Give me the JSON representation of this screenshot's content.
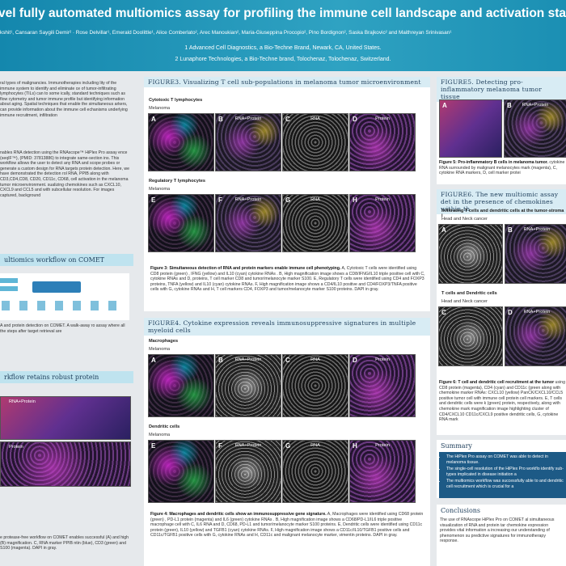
{
  "header": {
    "title": "vel fully automated multiomics assay for profiling the immune cell landscape and activation sta",
    "authors": "kshit¹, Cansaran Saygili Demir² · Rose Delvillar¹, Emerald Doolittle¹, Alice Comberlato², Arec Manoukian², Maria-Giuseppina Procopio², Pino Bordignon², Saska Brajkovic² and Maithreyan Srinivasan¹",
    "affiliations": [
      "1 Advanced Cell Diagnostics, a Bio-Techne Brand, Newark, CA, United States.",
      "2 Lunaphore Technologies, a Bio-Techne brand, Tolochenaz, Tolochenaz, Switzerland."
    ]
  },
  "left": {
    "intro": "ral types of malignancies. Immunotherapies including lity of the immune system to identify and eliminate ce of tumor-infiltrating lymphocytes (TILs) can to some ically, standard techniques such as flow cytometry and tumor immune profile but identifying information about aging. Spatial techniques that enable the simultaneous arkers, can provide information about the immune cell echanisms underlying immune recruitment, infiltration",
    "method": "nables RNA detection using the RNAscope™ HiPlex Pro assay ence (seqIF™), (PMID: 37813886) to integrate same-section ins. This workflow allows the user to detect any RNA and scope probes or generate a custom design for RNA targets protein detection. Here, we have demonstrated the detection rol RNA, PPIB along with CD3,CD4,CD8, CD20, CD11c, CD68, cell activation in the melanoma tumor microenvironment. sualizing chemokines such as CXCL10, CXCL9 and CCL5 and with subcellular resolution. For images captured, background",
    "workflow_heading": "ultiomics workflow on COMET",
    "workflow_caption": "A and protein detection on COMET. A walk-away ro assay where all the steps after target retrieval are",
    "protein_heading": "rkflow retains robust protein",
    "panel_labels": [
      "RNA+Protein",
      "Protein"
    ],
    "protein_caption": "e protease-free workflow on COMET enables successful (A) and high (B) magnification. C, RNA marker PPIB ntin (blue), CD3 (green) and S100 (magenta). DAPI in gray."
  },
  "figure3": {
    "title": "FIGURE3. Visualizing T cell sub-populations in melanoma tumor microenvironment",
    "groups": [
      {
        "name": "Cytotoxic T lymphocytes",
        "tissue": "Melanoma",
        "panels": [
          {
            "letter": "A",
            "label": ""
          },
          {
            "letter": "B",
            "label": "RNA+Protein"
          },
          {
            "letter": "C",
            "label": "RNA"
          },
          {
            "letter": "D",
            "label": "Protein"
          }
        ]
      },
      {
        "name": "Regulatory T lymphocytes",
        "tissue": "Melanoma",
        "panels": [
          {
            "letter": "E",
            "label": ""
          },
          {
            "letter": "F",
            "label": "RNA+Protein"
          },
          {
            "letter": "G",
            "label": "RNA"
          },
          {
            "letter": "H",
            "label": "Protein"
          }
        ]
      }
    ],
    "caption_bold": "Figure 3: Simultaneous detection of RNA and protein markers enable immune cell phenotyping.",
    "caption": " A, Cytotoxic T cells were identified using CD8 protein (green) , IFNG (yellow) and IL10 (cyan) cytokine RNAs . B, High magnification image shows a CD8/IFNG/IL10 triple positive cell with C, cytokine RNAs and D, proteins, T cell marker CD8 and tumor/melanocyte marker S100. E, Regulatory T cells were identified using CD4 and FOXP3 proteins, TNFA (yellow) and IL10 (cyan) cytokine RNAs. F, High magnification image shows a CD4/IL10 positive and CD4/FOXP3/TNFA positive cells with G, cytokine RNAs and H, T cell markers CD4, FOXP3 and tumor/melanocyte marker S100 proteins. DAPI in gray."
  },
  "figure4": {
    "title": "FIGURE4. Cytokine expression reveals immunosuppressive signatures in multiple myeloid cells",
    "groups": [
      {
        "name": "Macrophages",
        "tissue": "Melanoma",
        "panels": [
          {
            "letter": "A",
            "label": ""
          },
          {
            "letter": "B",
            "label": "RNA+Protein"
          },
          {
            "letter": "C",
            "label": "RNA"
          },
          {
            "letter": "D",
            "label": "Protein"
          }
        ]
      },
      {
        "name": "Dendritic cells",
        "tissue": "Melanoma",
        "panels": [
          {
            "letter": "E",
            "label": ""
          },
          {
            "letter": "F",
            "label": "RNA+Protein"
          },
          {
            "letter": "G",
            "label": "RNA"
          },
          {
            "letter": "H",
            "label": "Protein"
          }
        ]
      }
    ],
    "caption_bold": "Figure 4: Macrophages and dendritic cells show an immunosuppressive gene signature.",
    "caption": " A, Macrophages were identified using CD68 protein (green) , PD-L1 protein (magenta) and IL6 (green) cytokine RNAs . B, High magnification image shows a CD68/PD-L1/IL6 triple positive macrophage cell with C, IL6 RNA and D, CD68, PD-L1 and tumor/melanocyte marker S100 proteins. E, Dendritic cells were identified using CD11c protein (green), IL10 (yellow) and TGFB1 (cyan) cytokine RNAs. F, High magnification image shows a CD11c/IL10/TGFB1 positive cells and CD11c/TGFB1 positive cells with G, cytokine RNAs and H, CD11c and malignant melanocyte marker, vimentin proteins. DAPI in gray."
  },
  "figure5": {
    "title": "FIGURE5. Detecting pro-inflammatory melanoma tumor tissue",
    "panels": [
      {
        "letter": "A",
        "label": ""
      },
      {
        "letter": "B",
        "label": "RNA+Protein"
      }
    ],
    "caption_bold": "Figure 5: Pro-inflammatory B cells in melanoma tumor.",
    "caption": " cytokine RNA surrounded by malignant melanocytes mark (magenta), C, cytokine RNA markers, D, cell marker protei"
  },
  "figure6": {
    "title": "FIGURE6. The new multiomic assay det in the presence of chemokines within th",
    "groups": [
      {
        "name": "Infiltrating T cells and dendritic cells at the tumor-stroma i",
        "tissue": "Head and Neck cancer",
        "panels": [
          {
            "letter": "A",
            "label": ""
          },
          {
            "letter": "B",
            "label": "RNA+Protein"
          }
        ]
      },
      {
        "name": "T cells and Dendritic cells",
        "tissue": "Head and Neck cancer",
        "panels": [
          {
            "letter": "C",
            "label": ""
          },
          {
            "letter": "D",
            "label": "RNA+Protein"
          }
        ]
      }
    ],
    "caption_bold": "Figure 6: T cell and dendritic cell recruitment at the tumor",
    "caption": " using CD8 protein (magenta), CD4 (cyan) and CD11c (green along with chemokine marker RNAs: CXCL10 (yellow) PanCK/CXCL10/CCL5 positive tumor cell with immune cell protein cell markers. E, T cells and dendritic cells were k (green) protein, respectively, along with chemokine mark magnification image highlighting cluster of CD4/CXCL10 CD11c/CXCL9 positive dendritic cells, G, cytokine RNA mark"
  },
  "summary": {
    "heading": "Summary",
    "bullets": [
      "The HiPlex Pro assay on COMET was able to detect in melanoma tissue.",
      "The single-cell resolution of the HiPlex Pro workflo identify sub-types implicated in disease initiation a",
      "The multiomics workflow was successfully able to and dendritic cell recruitment which is crucial for a"
    ]
  },
  "conclusions": {
    "heading": "Conclusions",
    "text": "The use of RNAscope HiPlex Pro on COMET al simultaneous visualization of RNA and protein tar chemokine expression provides vital information a increasing our understanding of phenomenon su predictive signatures for immunotherapy response."
  }
}
